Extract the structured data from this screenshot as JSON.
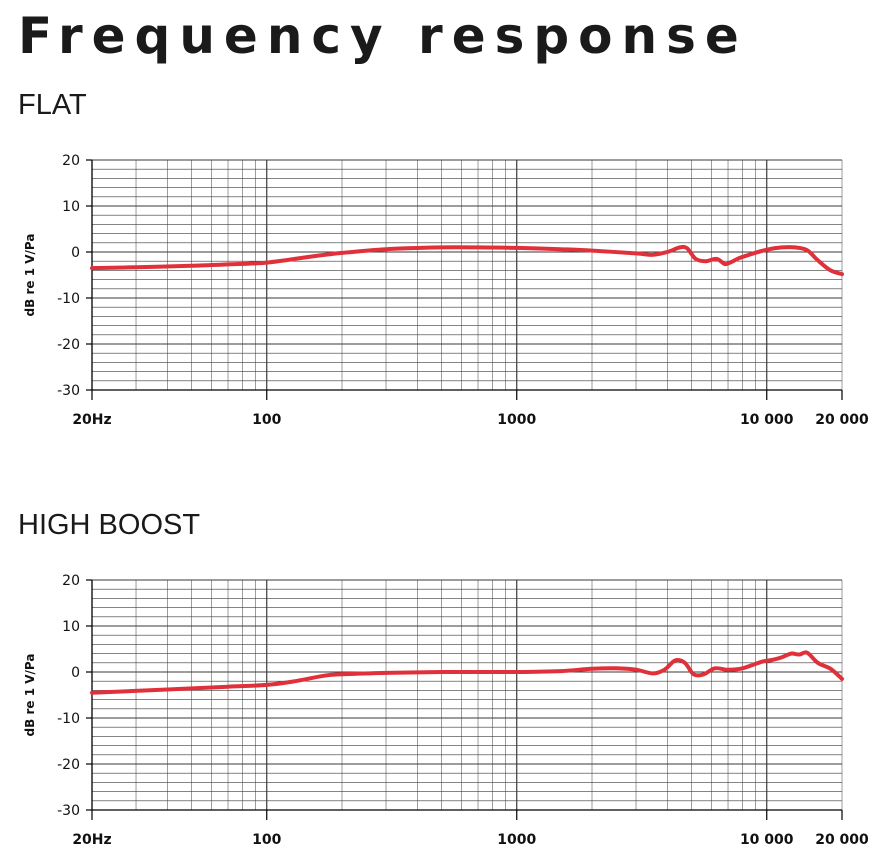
{
  "page_title": "Frequency response",
  "sections": [
    {
      "title": "FLAT"
    },
    {
      "title": "HIGH BOOST"
    }
  ],
  "colors": {
    "curve": "#e0313a",
    "grid": "#3a3a3a",
    "text": "#111111"
  },
  "chart_data": [
    {
      "type": "line",
      "title": "FLAT",
      "xlabel": "",
      "ylabel": "dB re 1 V/Pa",
      "xscale": "log",
      "xlim": [
        20,
        20000
      ],
      "ylim": [
        -30,
        20
      ],
      "xticks": [
        20,
        100,
        1000,
        10000,
        20000
      ],
      "xtick_labels": [
        "20Hz",
        "100",
        "1000",
        "10 000",
        "20 000"
      ],
      "yticks": [
        20,
        10,
        0,
        -10,
        -20,
        -30
      ],
      "ytick_labels": [
        "20",
        "10",
        "0",
        "-10",
        "-20",
        "-30"
      ],
      "grid": true,
      "series": [
        {
          "x": [
            20,
            30,
            50,
            70,
            100,
            150,
            200,
            300,
            500,
            700,
            1000,
            1500,
            2000,
            3000,
            3500,
            4000,
            4500,
            4800,
            5200,
            5700,
            6300,
            6800,
            7200,
            7700,
            8500,
            10000,
            11500,
            13000,
            14500,
            16000,
            18000,
            20000
          ],
          "y": [
            -3.5,
            -3.3,
            -3,
            -2.7,
            -2.3,
            -1,
            -0.2,
            0.6,
            1,
            1,
            0.9,
            0.6,
            0.3,
            -0.3,
            -0.6,
            0,
            1,
            0.8,
            -1.5,
            -2,
            -1.5,
            -2.6,
            -2.2,
            -1.4,
            -0.6,
            0.5,
            1,
            1,
            0.4,
            -1.8,
            -4,
            -4.8
          ]
        }
      ]
    },
    {
      "type": "line",
      "title": "HIGH BOOST",
      "xlabel": "",
      "ylabel": "dB re 1 V/Pa",
      "xscale": "log",
      "xlim": [
        20,
        20000
      ],
      "ylim": [
        -30,
        20
      ],
      "xticks": [
        20,
        100,
        1000,
        10000,
        20000
      ],
      "xtick_labels": [
        "20Hz",
        "100",
        "1000",
        "10 000",
        "20 000"
      ],
      "yticks": [
        20,
        10,
        0,
        -10,
        -20,
        -30
      ],
      "ytick_labels": [
        "20",
        "10",
        "0",
        "-10",
        "-20",
        "-30"
      ],
      "grid": true,
      "series": [
        {
          "x": [
            20,
            40,
            70,
            100,
            130,
            170,
            200,
            300,
            500,
            1000,
            1500,
            2000,
            2500,
            3000,
            3500,
            3900,
            4300,
            4700,
            5100,
            5600,
            6200,
            7000,
            8000,
            9500,
            10500,
            11500,
            12500,
            13500,
            14500,
            16000,
            18000,
            20000
          ],
          "y": [
            -4.5,
            -3.8,
            -3.2,
            -2.8,
            -2,
            -0.8,
            -0.5,
            -0.2,
            0,
            0,
            0.2,
            0.7,
            0.8,
            0.5,
            -0.3,
            0.5,
            2.5,
            2,
            -0.5,
            -0.5,
            0.8,
            0.5,
            0.8,
            2.2,
            2.6,
            3.2,
            4,
            3.8,
            4.2,
            2,
            0.7,
            -1.5
          ]
        }
      ]
    }
  ]
}
